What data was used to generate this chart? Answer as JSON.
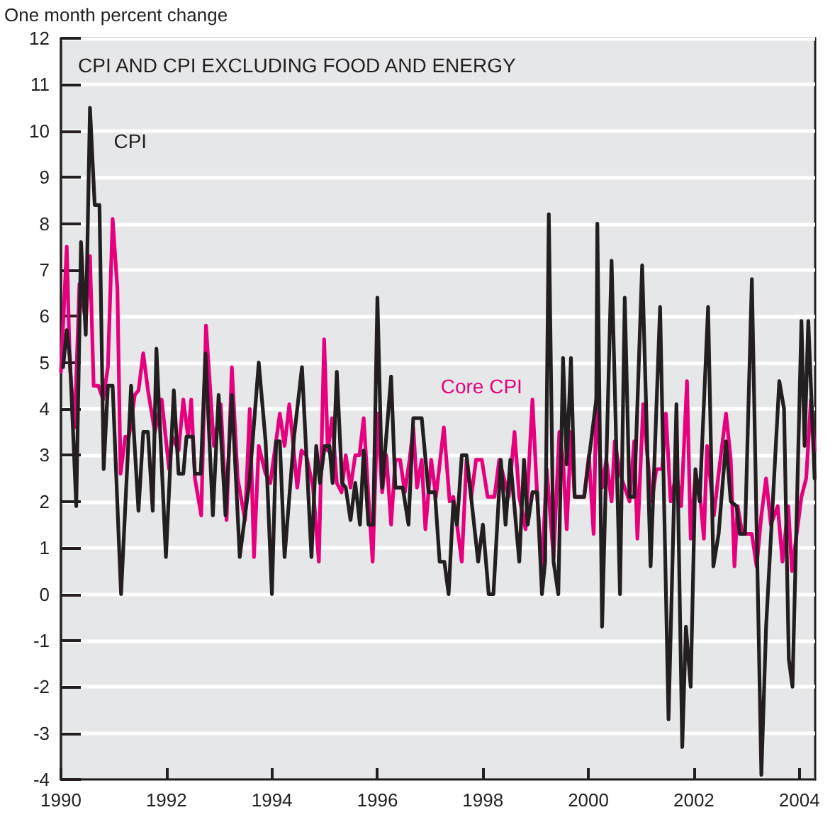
{
  "chart_data": {
    "type": "line",
    "title": "CPI AND CPI EXCLUDING FOOD AND ENERGY",
    "ylabel": "One month percent change",
    "xlim": [
      1990,
      2004.3
    ],
    "xticks": [
      1990,
      1992,
      1994,
      1996,
      1998,
      2000,
      2002,
      2004
    ],
    "ylim": [
      -4,
      12
    ],
    "yticks": [
      -4,
      -3,
      -2,
      -1,
      0,
      1,
      2,
      3,
      4,
      5,
      6,
      7,
      8,
      9,
      10,
      11,
      12
    ],
    "grid": "y",
    "legend": false,
    "marker": "none",
    "line_style": "solid",
    "series": [
      {
        "name": "CPI",
        "color": "#231f20",
        "x": [
          1990.04,
          1990.11,
          1990.17,
          1990.29,
          1990.38,
          1990.47,
          1990.55,
          1990.64,
          1990.73,
          1990.81,
          1990.89,
          1990.98,
          1991.11,
          1991.14,
          1991.33,
          1991.47,
          1991.56,
          1991.65,
          1991.74,
          1991.81,
          1991.99,
          1992.14,
          1992.23,
          1992.32,
          1992.38,
          1992.5,
          1992.54,
          1992.65,
          1992.74,
          1992.88,
          1992.99,
          1993.12,
          1993.24,
          1993.39,
          1993.58,
          1993.75,
          1993.88,
          1994.0,
          1994.08,
          1994.15,
          1994.24,
          1994.42,
          1994.57,
          1994.75,
          1994.84,
          1994.91,
          1995.0,
          1995.09,
          1995.15,
          1995.23,
          1995.33,
          1995.4,
          1995.49,
          1995.58,
          1995.67,
          1995.74,
          1995.83,
          1995.92,
          1996.0,
          1996.09,
          1996.26,
          1996.34,
          1996.48,
          1996.59,
          1996.68,
          1996.84,
          1996.97,
          1997.09,
          1997.18,
          1997.27,
          1997.35,
          1997.44,
          1997.51,
          1997.6,
          1997.69,
          1997.91,
          1998.0,
          1998.11,
          1998.2,
          1998.34,
          1998.43,
          1998.52,
          1998.69,
          1998.78,
          1998.85,
          1998.94,
          1999.03,
          1999.12,
          1999.18,
          1999.25,
          1999.34,
          1999.43,
          1999.52,
          1999.59,
          1999.67,
          1999.74,
          1999.83,
          1999.92,
          2000.15,
          2000.17,
          2000.26,
          2000.44,
          2000.6,
          2000.69,
          2000.78,
          2000.87,
          2001.02,
          2001.18,
          2001.36,
          2001.52,
          2001.67,
          2001.78,
          2001.85,
          2001.94,
          2002.03,
          2002.11,
          2002.27,
          2002.37,
          2002.47,
          2002.61,
          2002.7,
          2002.81,
          2002.87,
          2002.97,
          2003.1,
          2003.28,
          2003.37,
          2003.62,
          2003.71,
          2003.8,
          2003.87,
          2004.04,
          2004.1,
          2004.17,
          2004.29
        ],
        "values": [
          4.9,
          5.7,
          5.1,
          1.9,
          7.6,
          5.6,
          10.5,
          8.4,
          8.4,
          2.7,
          4.5,
          4.5,
          0.8,
          0,
          4.5,
          1.8,
          3.5,
          3.5,
          1.8,
          5.3,
          0.8,
          4.4,
          2.6,
          2.6,
          3.4,
          3.4,
          2.6,
          2.6,
          5.2,
          1.7,
          4.3,
          1.7,
          4.3,
          0.8,
          2.5,
          5,
          3.3,
          0,
          3.3,
          3.3,
          0.8,
          3.4,
          4.9,
          0.8,
          3.2,
          2.4,
          3.2,
          3.2,
          2.4,
          4.8,
          2.4,
          2.3,
          1.6,
          2.4,
          1.5,
          3.1,
          1.5,
          1.5,
          6.4,
          2.3,
          4.7,
          2.3,
          2.3,
          1.5,
          3.8,
          3.8,
          2.2,
          2.2,
          0.7,
          0.7,
          0,
          2,
          1.5,
          3,
          3,
          0.7,
          1.5,
          0,
          0,
          2.9,
          1.5,
          2.9,
          0.7,
          2.9,
          1.5,
          2.2,
          2.2,
          0,
          0.7,
          8.2,
          0.7,
          0,
          5.1,
          2.8,
          5.1,
          2.1,
          2.1,
          2.1,
          4.2,
          8,
          -0.7,
          7.2,
          0,
          6.4,
          2.1,
          2.1,
          7.1,
          0.6,
          6.2,
          -2.7,
          4.1,
          -3.3,
          -0.7,
          -2,
          2.7,
          2,
          6.2,
          0.6,
          1.3,
          3.3,
          2,
          1.9,
          1.3,
          1.3,
          6.8,
          -3.9,
          -0.7,
          4.6,
          4,
          -1.4,
          -2,
          5.9,
          3.2,
          5.9,
          2.5
        ]
      },
      {
        "name": "Core CPI",
        "color": "#e6007e",
        "x": [
          1990.0,
          1990.11,
          1990.17,
          1990.26,
          1990.35,
          1990.47,
          1990.55,
          1990.62,
          1990.71,
          1990.8,
          1990.89,
          1990.98,
          1991.07,
          1991.13,
          1991.22,
          1991.29,
          1991.4,
          1991.47,
          1991.56,
          1991.65,
          1991.78,
          1991.91,
          1992.05,
          1992.11,
          1992.23,
          1992.32,
          1992.41,
          1992.47,
          1992.54,
          1992.66,
          1992.75,
          1992.9,
          1993.03,
          1993.14,
          1993.24,
          1993.35,
          1993.49,
          1993.58,
          1993.66,
          1993.75,
          1993.88,
          1993.97,
          1994.15,
          1994.24,
          1994.33,
          1994.48,
          1994.56,
          1994.65,
          1994.78,
          1994.89,
          1994.99,
          1995.06,
          1995.14,
          1995.23,
          1995.32,
          1995.4,
          1995.49,
          1995.58,
          1995.66,
          1995.74,
          1995.83,
          1995.91,
          1996.0,
          1996.09,
          1996.17,
          1996.26,
          1996.34,
          1996.43,
          1996.52,
          1996.61,
          1996.68,
          1996.75,
          1996.84,
          1996.91,
          1997.02,
          1997.11,
          1997.26,
          1997.37,
          1997.44,
          1997.6,
          1997.69,
          1997.78,
          1997.87,
          1997.98,
          1998.09,
          1998.22,
          1998.31,
          1998.49,
          1998.6,
          1998.69,
          1998.81,
          1998.94,
          1999.03,
          1999.12,
          1999.21,
          1999.34,
          1999.45,
          1999.52,
          1999.59,
          1999.67,
          1999.74,
          1999.92,
          2000.01,
          2000.1,
          2000.15,
          2000.26,
          2000.34,
          2000.44,
          2000.5,
          2000.6,
          2000.78,
          2000.87,
          2000.93,
          2001.04,
          2001.11,
          2001.2,
          2001.29,
          2001.4,
          2001.47,
          2001.56,
          2001.67,
          2001.76,
          2001.87,
          2001.94,
          2002.03,
          2002.12,
          2002.19,
          2002.25,
          2002.38,
          2002.47,
          2002.61,
          2002.7,
          2002.77,
          2002.83,
          2002.92,
          2003.1,
          2003.19,
          2003.28,
          2003.37,
          2003.46,
          2003.59,
          2003.68,
          2003.79,
          2003.86,
          2004.04,
          2004.13,
          2004.22,
          2004.29
        ],
        "values": [
          4.8,
          7.5,
          4.9,
          3.6,
          6.7,
          5.9,
          7.3,
          4.5,
          4.5,
          4.2,
          4.9,
          8.1,
          6.6,
          2.6,
          3.4,
          3.4,
          4.3,
          4.4,
          5.2,
          4.4,
          3.5,
          4.2,
          2.7,
          3.4,
          3.1,
          4.2,
          3.4,
          4.2,
          2.5,
          1.7,
          5.8,
          3.2,
          4.1,
          1.6,
          4.9,
          2.5,
          1.6,
          4,
          0.8,
          3.2,
          2.6,
          2.4,
          3.9,
          3.2,
          4.1,
          2.3,
          3.1,
          3,
          2.3,
          0.7,
          5.5,
          3.1,
          3.8,
          2.4,
          2.2,
          3,
          2.3,
          3,
          3,
          3.8,
          2.1,
          0.7,
          3.9,
          2.2,
          3,
          1.5,
          2.9,
          2.9,
          2.2,
          2.9,
          3.6,
          2.3,
          2.9,
          1.4,
          2.9,
          2.1,
          3.6,
          2,
          2.1,
          0.7,
          2.9,
          2.1,
          2.9,
          2.9,
          2.1,
          2.1,
          2.9,
          2.1,
          3.5,
          2.1,
          1.4,
          4.2,
          2.1,
          0.5,
          2.7,
          0.8,
          3.5,
          2.9,
          1.4,
          3.5,
          2.1,
          2.1,
          3,
          1.3,
          4.2,
          2.3,
          2.9,
          2,
          3.3,
          2.6,
          2,
          3.3,
          1.2,
          4.1,
          3.1,
          2,
          2.7,
          2.7,
          3.9,
          2,
          2.6,
          1.9,
          4.6,
          1.2,
          2.6,
          2.1,
          1.2,
          3.2,
          1.7,
          2.6,
          3.9,
          2.9,
          0.6,
          1.9,
          1.3,
          1.3,
          0.6,
          1.7,
          2.5,
          1.5,
          1.9,
          0.7,
          1.9,
          0.5,
          2.1,
          2.5,
          4.2,
          3.1
        ]
      }
    ]
  }
}
